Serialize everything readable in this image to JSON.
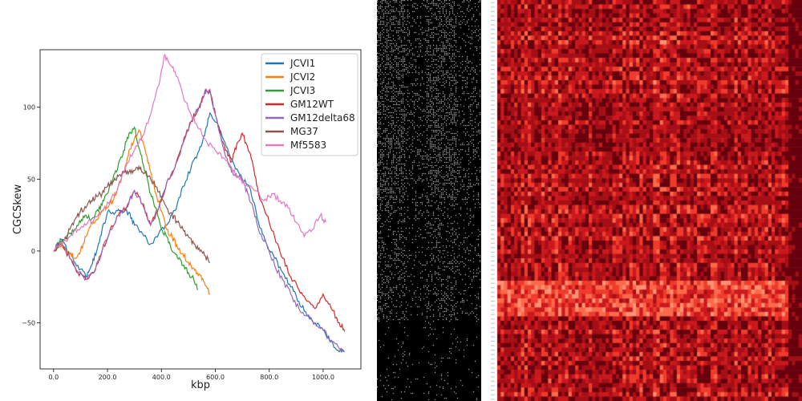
{
  "chart_data": {
    "type": "line",
    "title": "",
    "xlabel": "kbp",
    "ylabel": "CGCSkew",
    "xlim": [
      -50,
      1140
    ],
    "ylim": [
      -82,
      140
    ],
    "xticks": [
      0,
      200,
      400,
      600,
      800,
      1000
    ],
    "xtick_labels": [
      "0.0",
      "200.0",
      "400.0",
      "600.0",
      "800.0",
      "1000.0"
    ],
    "yticks": [
      -50,
      0,
      50,
      100
    ],
    "ytick_labels": [
      "−50",
      "0",
      "50",
      "100"
    ],
    "grid": false,
    "legend_position": "top-right",
    "series": [
      {
        "name": "JCVI1",
        "color": "#1f77b4",
        "x": [
          0,
          30,
          60,
          90,
          120,
          140,
          160,
          180,
          200,
          230,
          250,
          280,
          300,
          330,
          360,
          390,
          420,
          450,
          480,
          510,
          540,
          560,
          580,
          610,
          640,
          670,
          700,
          730,
          760,
          790,
          820,
          850,
          880,
          910,
          940,
          970,
          1000,
          1030,
          1060,
          1080
        ],
        "y": [
          0,
          8,
          -2,
          -10,
          -18,
          -10,
          0,
          15,
          27,
          27,
          27,
          27,
          18,
          12,
          5,
          12,
          18,
          28,
          45,
          58,
          70,
          80,
          96,
          88,
          73,
          60,
          50,
          43,
          20,
          5,
          -5,
          -15,
          -25,
          -35,
          -45,
          -50,
          -55,
          -63,
          -70,
          -70
        ]
      },
      {
        "name": "JCVI2",
        "color": "#ff7f0e",
        "x": [
          0,
          20,
          40,
          60,
          80,
          100,
          120,
          140,
          160,
          180,
          200,
          220,
          240,
          260,
          280,
          300,
          320,
          340,
          360,
          380,
          400,
          420,
          440,
          460,
          480,
          500,
          520,
          540,
          560,
          580
        ],
        "y": [
          0,
          5,
          2,
          -2,
          -5,
          0,
          10,
          20,
          22,
          28,
          30,
          35,
          45,
          55,
          70,
          78,
          83,
          70,
          55,
          40,
          28,
          15,
          10,
          2,
          -2,
          -8,
          -12,
          -16,
          -22,
          -30
        ]
      },
      {
        "name": "JCVI3",
        "color": "#2ca02c",
        "x": [
          0,
          20,
          40,
          60,
          80,
          100,
          120,
          140,
          160,
          180,
          200,
          220,
          240,
          260,
          280,
          300,
          320,
          340,
          360,
          380,
          400,
          420,
          440,
          460,
          480,
          500,
          520,
          535
        ],
        "y": [
          0,
          5,
          8,
          12,
          15,
          20,
          25,
          22,
          28,
          32,
          40,
          50,
          60,
          70,
          82,
          86,
          70,
          55,
          40,
          30,
          15,
          10,
          0,
          -5,
          -10,
          -15,
          -20,
          -27
        ]
      },
      {
        "name": "GM12WT",
        "color": "#d62728",
        "x": [
          0,
          30,
          60,
          90,
          120,
          150,
          180,
          210,
          240,
          270,
          300,
          330,
          360,
          390,
          420,
          450,
          480,
          510,
          540,
          560,
          580,
          600,
          620,
          640,
          660,
          680,
          700,
          720,
          740,
          760,
          790,
          820,
          850,
          880,
          910,
          940,
          970,
          1000,
          1030,
          1060,
          1080
        ],
        "y": [
          0,
          5,
          -5,
          -15,
          -20,
          -15,
          0,
          15,
          25,
          30,
          42,
          33,
          18,
          30,
          48,
          58,
          75,
          90,
          100,
          110,
          112,
          95,
          80,
          70,
          62,
          75,
          82,
          72,
          60,
          40,
          25,
          10,
          -5,
          -18,
          -27,
          -35,
          -40,
          -30,
          -40,
          -50,
          -56
        ]
      },
      {
        "name": "GM12delta68",
        "color": "#9467bd",
        "x": [
          0,
          30,
          60,
          90,
          120,
          150,
          180,
          210,
          240,
          270,
          300,
          330,
          360,
          390,
          420,
          450,
          480,
          510,
          540,
          560,
          580,
          600,
          620,
          640,
          660,
          680,
          700,
          720,
          740,
          760,
          790,
          820,
          850,
          880,
          910,
          940,
          970,
          1000,
          1030,
          1060,
          1080
        ],
        "y": [
          0,
          5,
          -5,
          -15,
          -20,
          -15,
          0,
          15,
          25,
          30,
          42,
          33,
          18,
          30,
          48,
          58,
          75,
          90,
          100,
          110,
          112,
          95,
          80,
          65,
          55,
          52,
          50,
          40,
          30,
          15,
          5,
          -10,
          -20,
          -30,
          -40,
          -45,
          -50,
          -55,
          -62,
          -68,
          -70
        ]
      },
      {
        "name": "MG37",
        "color": "#8c564b",
        "x": [
          0,
          20,
          40,
          60,
          80,
          100,
          120,
          140,
          160,
          180,
          200,
          220,
          240,
          260,
          280,
          300,
          320,
          340,
          360,
          380,
          400,
          420,
          440,
          460,
          480,
          500,
          520,
          540,
          560,
          580
        ],
        "y": [
          0,
          4,
          8,
          15,
          22,
          28,
          30,
          35,
          38,
          40,
          45,
          48,
          52,
          55,
          55,
          56,
          57,
          55,
          50,
          45,
          38,
          30,
          25,
          20,
          15,
          10,
          5,
          2,
          -3,
          -8
        ]
      },
      {
        "name": "Mf5583",
        "color": "#e377c2",
        "x": [
          0,
          30,
          60,
          90,
          120,
          150,
          180,
          210,
          240,
          270,
          300,
          330,
          360,
          390,
          410,
          430,
          450,
          480,
          510,
          540,
          570,
          600,
          630,
          660,
          690,
          720,
          750,
          780,
          810,
          840,
          870,
          900,
          930,
          960,
          990,
          1010
        ],
        "y": [
          0,
          5,
          10,
          15,
          18,
          22,
          28,
          35,
          45,
          60,
          70,
          80,
          95,
          115,
          136,
          130,
          125,
          108,
          95,
          85,
          75,
          70,
          65,
          58,
          50,
          45,
          42,
          35,
          40,
          35,
          30,
          20,
          10,
          15,
          25,
          20
        ]
      }
    ]
  }
}
